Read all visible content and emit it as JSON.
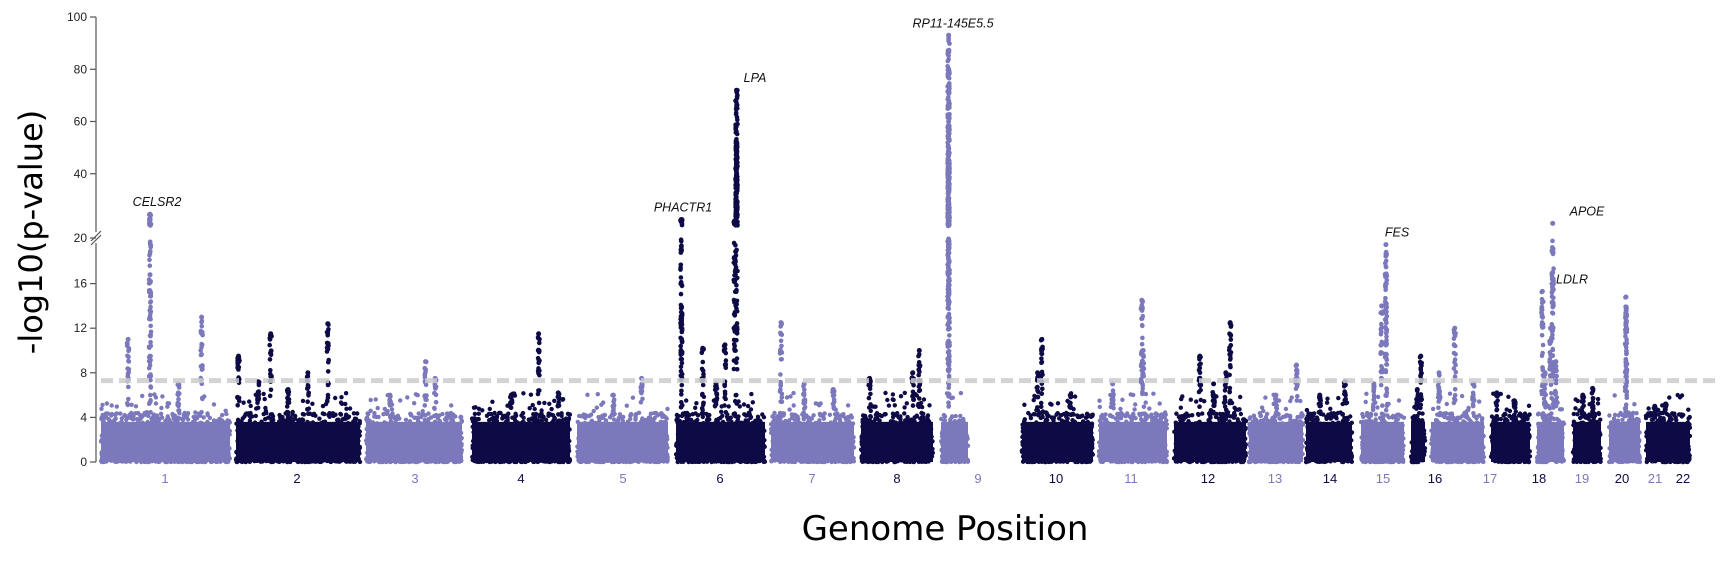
{
  "chart_data": {
    "type": "scatter",
    "subtype": "manhattan",
    "title": "",
    "xlabel": "Genome Position",
    "ylabel": "-log10(p-value)",
    "y_axis": {
      "broken": true,
      "lower_ticks": [
        0,
        4,
        8,
        12,
        16,
        20
      ],
      "upper_ticks": [
        20,
        40,
        60,
        80,
        100
      ],
      "lower_range": [
        0,
        20
      ],
      "upper_range": [
        20,
        100
      ]
    },
    "significance_threshold": 7.3,
    "grid": false,
    "colors": {
      "light": "#7b78bc",
      "dark": "#0d0a45",
      "threshold": "#cccccc",
      "axis": "#555555"
    },
    "chromosomes": [
      {
        "label": "1",
        "color": "light",
        "max": 24.5
      },
      {
        "label": "2",
        "color": "dark",
        "max": 12.5
      },
      {
        "label": "3",
        "color": "light",
        "max": 9.0
      },
      {
        "label": "4",
        "color": "dark",
        "max": 11.5
      },
      {
        "label": "5",
        "color": "light",
        "max": 7.5
      },
      {
        "label": "6",
        "color": "dark",
        "max": 72.0
      },
      {
        "label": "7",
        "color": "light",
        "max": 12.5
      },
      {
        "label": "8",
        "color": "dark",
        "max": 10.0
      },
      {
        "label": "9",
        "color": "light",
        "max": 93.0
      },
      {
        "label": "10",
        "color": "dark",
        "max": 11.0
      },
      {
        "label": "11",
        "color": "light",
        "max": 14.5
      },
      {
        "label": "12",
        "color": "dark",
        "max": 12.5
      },
      {
        "label": "13",
        "color": "light",
        "max": 8.7
      },
      {
        "label": "14",
        "color": "dark",
        "max": 7.2
      },
      {
        "label": "15",
        "color": "light",
        "max": 19.5
      },
      {
        "label": "16",
        "color": "dark",
        "max": 9.5
      },
      {
        "label": "17",
        "color": "light",
        "max": 12.0
      },
      {
        "label": "18",
        "color": "dark",
        "max": 6.2
      },
      {
        "label": "19",
        "color": "light",
        "max": 21.0
      },
      {
        "label": "20",
        "color": "dark",
        "max": 6.6
      },
      {
        "label": "21",
        "color": "light",
        "max": 14.8
      },
      {
        "label": "22",
        "color": "dark",
        "max": 5.2
      }
    ],
    "annotations": [
      {
        "gene": "CELSR2",
        "chromosome": "1",
        "value": 24.5
      },
      {
        "gene": "PHACTR1",
        "chromosome": "6",
        "value": 22.5
      },
      {
        "gene": "LPA",
        "chromosome": "6",
        "value": 72.0
      },
      {
        "gene": "RP11-145E5.5",
        "chromosome": "9",
        "value": 93.0
      },
      {
        "gene": "FES",
        "chromosome": "15",
        "value": 19.5
      },
      {
        "gene": "LDLR",
        "chromosome": "19",
        "value": 15.3
      },
      {
        "gene": "APOE",
        "chromosome": "19",
        "value": 21.0
      }
    ]
  }
}
